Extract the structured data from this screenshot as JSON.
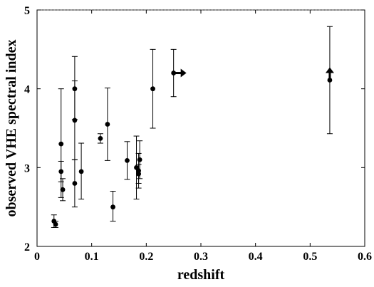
{
  "chart_data": {
    "type": "scatter",
    "title": "",
    "xlabel": "redshift",
    "ylabel": "observed VHE spectral index",
    "xlim": [
      0,
      0.6
    ],
    "ylim": [
      2,
      5
    ],
    "grid": false,
    "legend": "none",
    "x_ticks": [
      "0",
      "0.1",
      "0.2",
      "0.3",
      "0.4",
      "0.5",
      "0.6"
    ],
    "y_ticks": [
      "2",
      "3",
      "4",
      "5"
    ],
    "points": [
      {
        "x": 0.031,
        "y": 2.32,
        "yerr_low": 2.24,
        "yerr_high": 2.4
      },
      {
        "x": 0.034,
        "y": 2.28,
        "yerr_low": 2.24,
        "yerr_high": 2.32
      },
      {
        "x": 0.044,
        "y": 3.3,
        "yerr_low": 2.62,
        "yerr_high": 4.0
      },
      {
        "x": 0.044,
        "y": 2.95,
        "yerr_low": 2.82,
        "yerr_high": 3.08
      },
      {
        "x": 0.047,
        "y": 2.72,
        "yerr_low": 2.58,
        "yerr_high": 2.86
      },
      {
        "x": 0.069,
        "y": 4.0,
        "yerr_low": 3.61,
        "yerr_high": 4.41
      },
      {
        "x": 0.069,
        "y": 3.6,
        "yerr_low": 3.1,
        "yerr_high": 4.1
      },
      {
        "x": 0.069,
        "y": 2.8,
        "yerr_low": 2.5,
        "yerr_high": 3.1
      },
      {
        "x": 0.081,
        "y": 2.95,
        "yerr_low": 2.6,
        "yerr_high": 3.31
      },
      {
        "x": 0.116,
        "y": 3.37,
        "yerr_low": 3.31,
        "yerr_high": 3.43
      },
      {
        "x": 0.129,
        "y": 3.55,
        "yerr_low": 3.09,
        "yerr_high": 4.01
      },
      {
        "x": 0.139,
        "y": 2.5,
        "yerr_low": 2.32,
        "yerr_high": 2.7
      },
      {
        "x": 0.165,
        "y": 3.09,
        "yerr_low": 2.85,
        "yerr_high": 3.33
      },
      {
        "x": 0.182,
        "y": 3.0,
        "yerr_low": 2.6,
        "yerr_high": 3.4
      },
      {
        "x": 0.186,
        "y": 2.96,
        "yerr_low": 2.74,
        "yerr_high": 3.18
      },
      {
        "x": 0.186,
        "y": 2.92,
        "yerr_low": 2.8,
        "yerr_high": 3.04
      },
      {
        "x": 0.188,
        "y": 3.1,
        "yerr_low": 2.86,
        "yerr_high": 3.34
      },
      {
        "x": 0.212,
        "y": 4.0,
        "yerr_low": 3.5,
        "yerr_high": 4.5
      },
      {
        "x": 0.25,
        "y": 4.2,
        "yerr_low": 3.9,
        "yerr_high": 4.5,
        "arrow": "right"
      },
      {
        "x": 0.536,
        "y": 4.11,
        "yerr_low": 3.43,
        "yerr_high": 4.79
      },
      {
        "x": 0.536,
        "y": 4.2,
        "arrow": "up"
      }
    ]
  }
}
